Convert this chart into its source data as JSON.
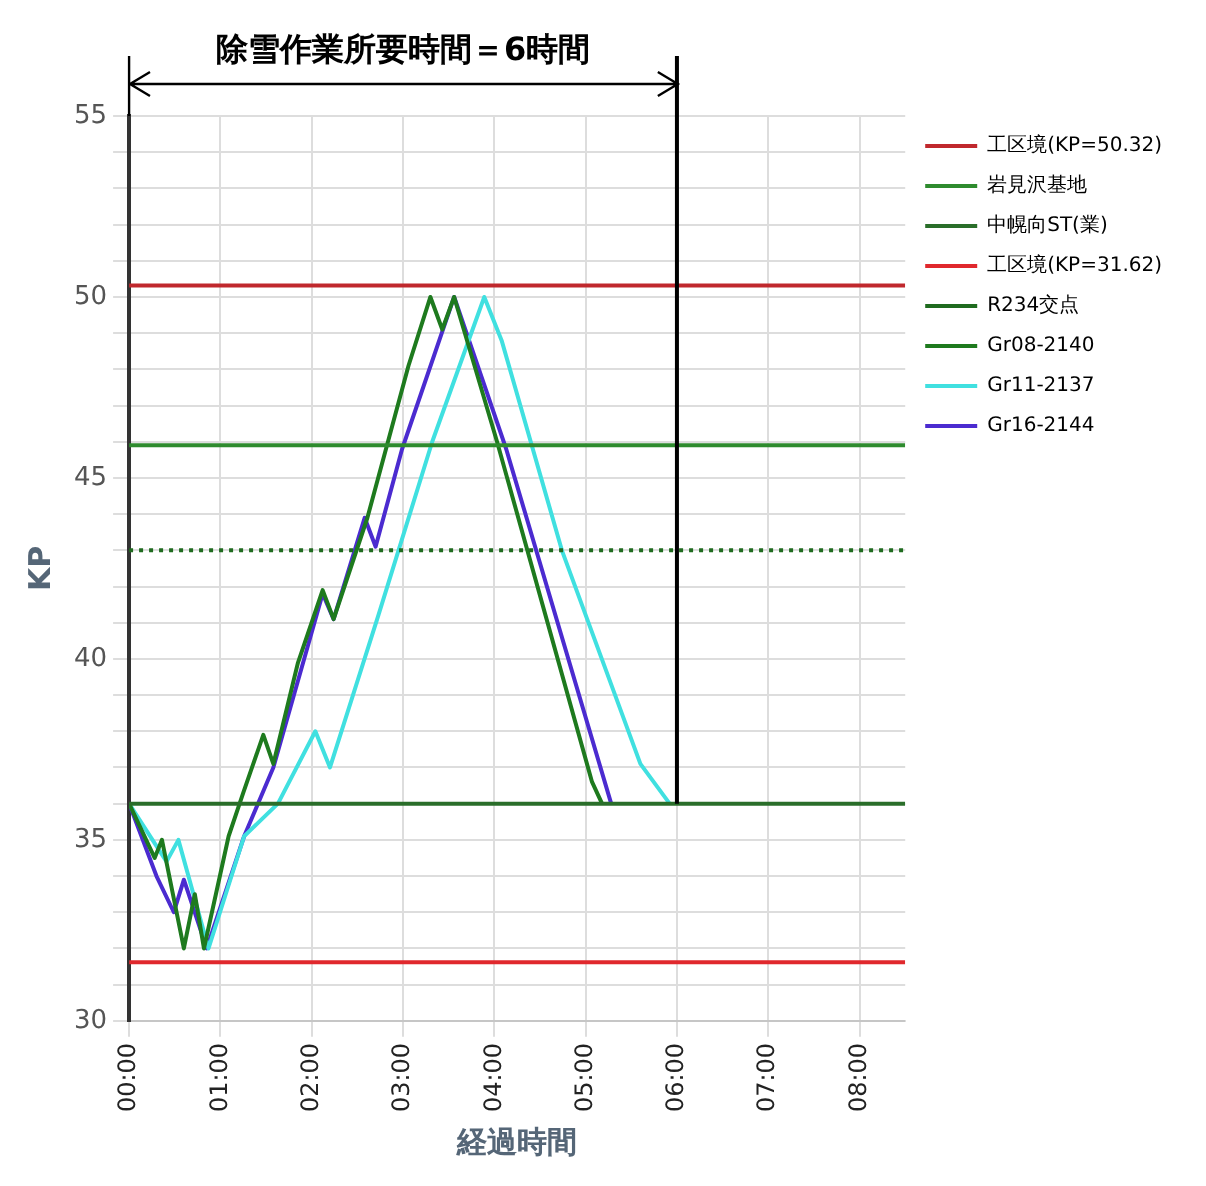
{
  "chart_data": {
    "type": "line",
    "xlabel": "経過時間",
    "ylabel": "KP",
    "annotations": [
      "除雪作業所要時間＝6時間"
    ],
    "xlim": [
      0,
      8.5
    ],
    "xticks": [
      {
        "value": 0,
        "label": "00:00"
      },
      {
        "value": 1,
        "label": "01:00"
      },
      {
        "value": 2,
        "label": "02:00"
      },
      {
        "value": 3,
        "label": "03:00"
      },
      {
        "value": 4,
        "label": "04:00"
      },
      {
        "value": 5,
        "label": "05:00"
      },
      {
        "value": 6,
        "label": "06:00"
      },
      {
        "value": 7,
        "label": "07:00"
      },
      {
        "value": 8,
        "label": "08:00"
      }
    ],
    "ylim": [
      30,
      55
    ],
    "yticks": [
      30,
      {
        "value": 31,
        "label": null
      },
      {
        "value": 32,
        "label": null
      },
      {
        "value": 33,
        "label": null
      },
      {
        "value": 34,
        "label": null
      },
      35,
      {
        "value": 36,
        "label": null
      },
      {
        "value": 37,
        "label": null
      },
      {
        "value": 38,
        "label": null
      },
      {
        "value": 39,
        "label": null
      },
      40,
      {
        "value": 41,
        "label": null
      },
      {
        "value": 42,
        "label": null
      },
      {
        "value": 43,
        "label": null
      },
      {
        "value": 44,
        "label": null
      },
      45,
      {
        "value": 46,
        "label": null
      },
      {
        "value": 47,
        "label": null
      },
      {
        "value": 48,
        "label": null
      },
      {
        "value": 49,
        "label": null
      },
      50,
      {
        "value": 51,
        "label": null
      },
      {
        "value": 52,
        "label": null
      },
      {
        "value": 53,
        "label": null
      },
      {
        "value": 54,
        "label": null
      },
      55
    ],
    "grid": true,
    "legend": "top right",
    "marker": "none",
    "ref_lines": [
      {
        "axis": "x",
        "value": 6,
        "color": "#000000"
      }
    ],
    "series": [
      {
        "name": "工区境(KP=50.32)",
        "color": "#c0282d",
        "x": [
          0,
          8.5
        ],
        "values": [
          50.32,
          50.32
        ]
      },
      {
        "name": "岩見沢基地",
        "color": "#2e8b2e",
        "x": [
          0,
          8.5
        ],
        "values": [
          45.9,
          45.9
        ]
      },
      {
        "name": "中幌向ST(業)",
        "color": "#2a6e2a",
        "x": [
          0,
          8.5
        ],
        "values": [
          36,
          36
        ]
      },
      {
        "name": "工区境(KP=31.62)",
        "color": "#e0282d",
        "x": [
          0,
          8.5
        ],
        "values": [
          31.62,
          31.62
        ]
      },
      {
        "name": "R234交点",
        "color": "#1f6b1f",
        "line_style": "dotted",
        "x": [
          0,
          8.5
        ],
        "values": [
          43,
          43
        ]
      },
      {
        "name": "Gr08-2140",
        "color": "#1e7a1e",
        "x": [
          0,
          0.28,
          0.36,
          0.6,
          0.72,
          0.82,
          1.09,
          1.25,
          1.47,
          1.58,
          1.85,
          2.12,
          2.24,
          2.61,
          3.06,
          3.3,
          3.43,
          3.56,
          4.03,
          5.07,
          5.18
        ],
        "values": [
          36,
          34.5,
          35,
          32,
          33.5,
          32,
          35.1,
          36.3,
          37.9,
          37.1,
          39.9,
          41.9,
          41.1,
          43.9,
          48.1,
          50,
          49.1,
          50,
          46,
          36.6,
          36
        ]
      },
      {
        "name": "Gr11-2137",
        "color": "#40e0e0",
        "x": [
          0,
          0.41,
          0.54,
          0.87,
          1.26,
          1.63,
          2.04,
          2.2,
          2.73,
          3.32,
          3.89,
          4.08,
          4.74,
          5.6,
          5.92
        ],
        "values": [
          36,
          34.4,
          35,
          32,
          35.1,
          36,
          38,
          37,
          41.2,
          46,
          50,
          48.8,
          43,
          37.1,
          36
        ]
      },
      {
        "name": "Gr16-2144",
        "color": "#4b2bd0",
        "x": [
          0,
          0.3,
          0.49,
          0.6,
          0.85,
          1.26,
          1.58,
          2.12,
          2.24,
          2.58,
          2.7,
          2.99,
          3.56,
          4.13,
          5.28
        ],
        "values": [
          36,
          34,
          33,
          33.9,
          32,
          35.1,
          37,
          41.8,
          41.1,
          43.9,
          43.1,
          45.8,
          50,
          45.8,
          36
        ]
      }
    ]
  }
}
